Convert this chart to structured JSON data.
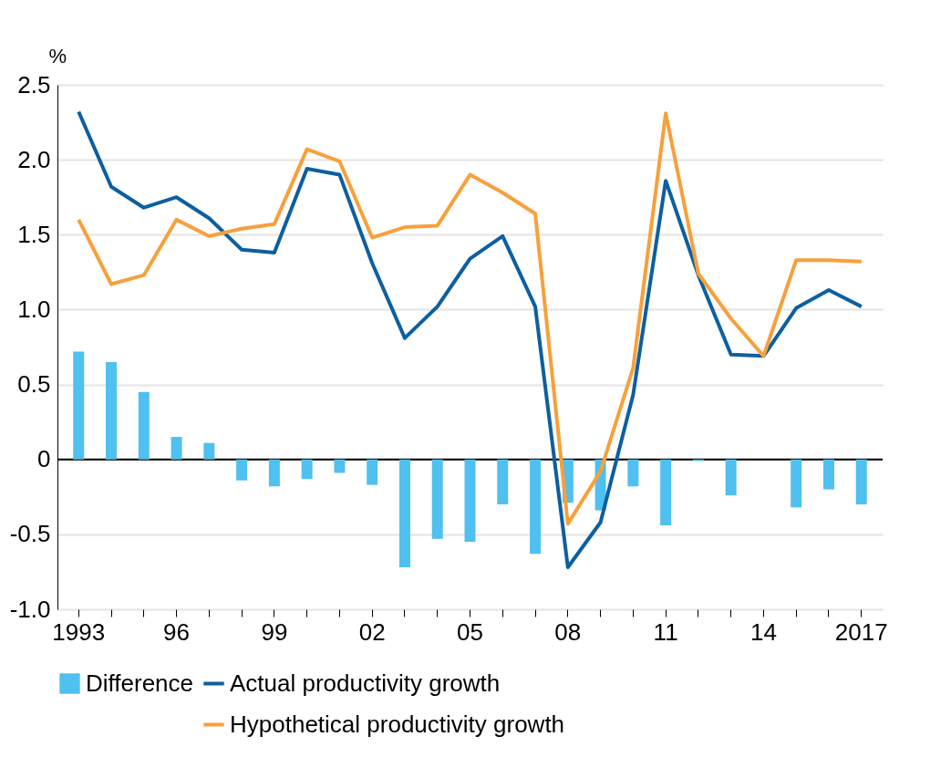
{
  "chart_data": {
    "type": "line",
    "ylabel": "%",
    "categories": [
      "1993",
      null,
      null,
      "96",
      null,
      null,
      "99",
      null,
      null,
      "02",
      null,
      null,
      "05",
      null,
      null,
      "08",
      null,
      null,
      "11",
      null,
      null,
      "14",
      null,
      null,
      "2017"
    ],
    "series": [
      {
        "name": "Actual productivity growth",
        "color": "#0d5fa0",
        "values": [
          2.32,
          1.82,
          1.68,
          1.75,
          1.61,
          1.4,
          1.38,
          1.94,
          1.9,
          1.31,
          0.81,
          1.02,
          1.34,
          1.49,
          1.02,
          -0.72,
          -0.42,
          0.43,
          1.86,
          1.23,
          0.7,
          0.69,
          1.01,
          1.13,
          1.02
        ]
      },
      {
        "name": "Hypothetical productivity growth",
        "color": "#f7a03c",
        "values": [
          1.6,
          1.17,
          1.23,
          1.6,
          1.49,
          1.54,
          1.57,
          2.07,
          1.99,
          1.48,
          1.55,
          1.56,
          1.9,
          1.78,
          1.64,
          -0.43,
          -0.08,
          0.61,
          2.31,
          1.24,
          0.94,
          0.69,
          1.33,
          1.33,
          1.32
        ]
      },
      {
        "name": "Difference",
        "type": "bar",
        "color": "#4fc0ef",
        "values": [
          0.72,
          0.65,
          0.45,
          0.15,
          0.11,
          -0.14,
          -0.18,
          -0.13,
          -0.09,
          -0.17,
          -0.72,
          -0.53,
          -0.55,
          -0.3,
          -0.63,
          -0.29,
          -0.34,
          -0.18,
          -0.44,
          -0.01,
          -0.24,
          0,
          -0.32,
          -0.2,
          -0.3
        ]
      }
    ],
    "ylim": [
      -1.0,
      2.5
    ],
    "yticks": [
      2.5,
      {
        "value": 2,
        "label": "2.0"
      },
      1.5,
      {
        "value": 1,
        "label": "1.0"
      },
      0.5,
      0,
      -0.5,
      {
        "value": -1,
        "label": "-1.0"
      }
    ],
    "ref_lines": [
      {
        "axis": "y",
        "value": 0,
        "color": "#000000"
      }
    ],
    "grid": "y",
    "legend": "bottom",
    "line_style": "solid",
    "marker": "none"
  }
}
